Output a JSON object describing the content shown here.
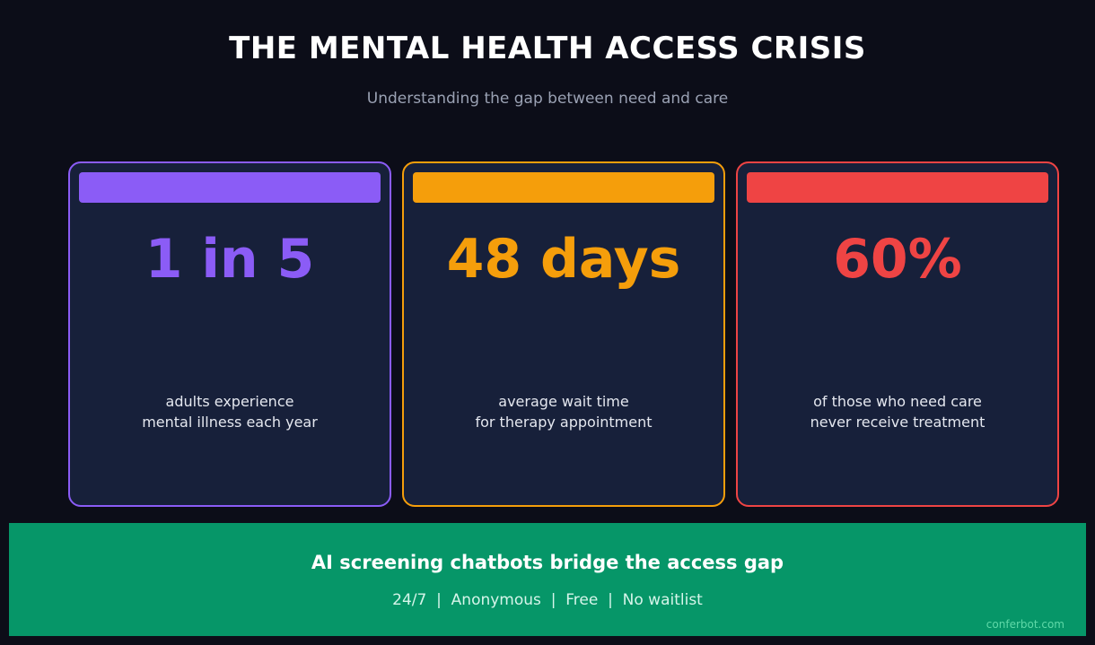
{
  "header": {
    "title": "THE MENTAL HEALTH ACCESS CRISIS",
    "subtitle": "Understanding the gap between need and care"
  },
  "cards": [
    {
      "stat": "1 in 5",
      "desc_line1": "adults experience",
      "desc_line2": "mental illness each year",
      "accent": "#8b5cf6"
    },
    {
      "stat": "48 days",
      "desc_line1": "average wait time",
      "desc_line2": "for therapy appointment",
      "accent": "#f59e0b"
    },
    {
      "stat": "60%",
      "desc_line1": "of those who need care",
      "desc_line2": "never receive treatment",
      "accent": "#ef4444"
    }
  ],
  "footer": {
    "headline": "AI screening chatbots bridge the access gap",
    "tagline": "24/7  |  Anonymous  |  Free  |  No waitlist",
    "watermark": "conferbot.com",
    "background": "#069668"
  },
  "colors": {
    "page_background": "#0c0d18",
    "card_background": "#17203a"
  }
}
